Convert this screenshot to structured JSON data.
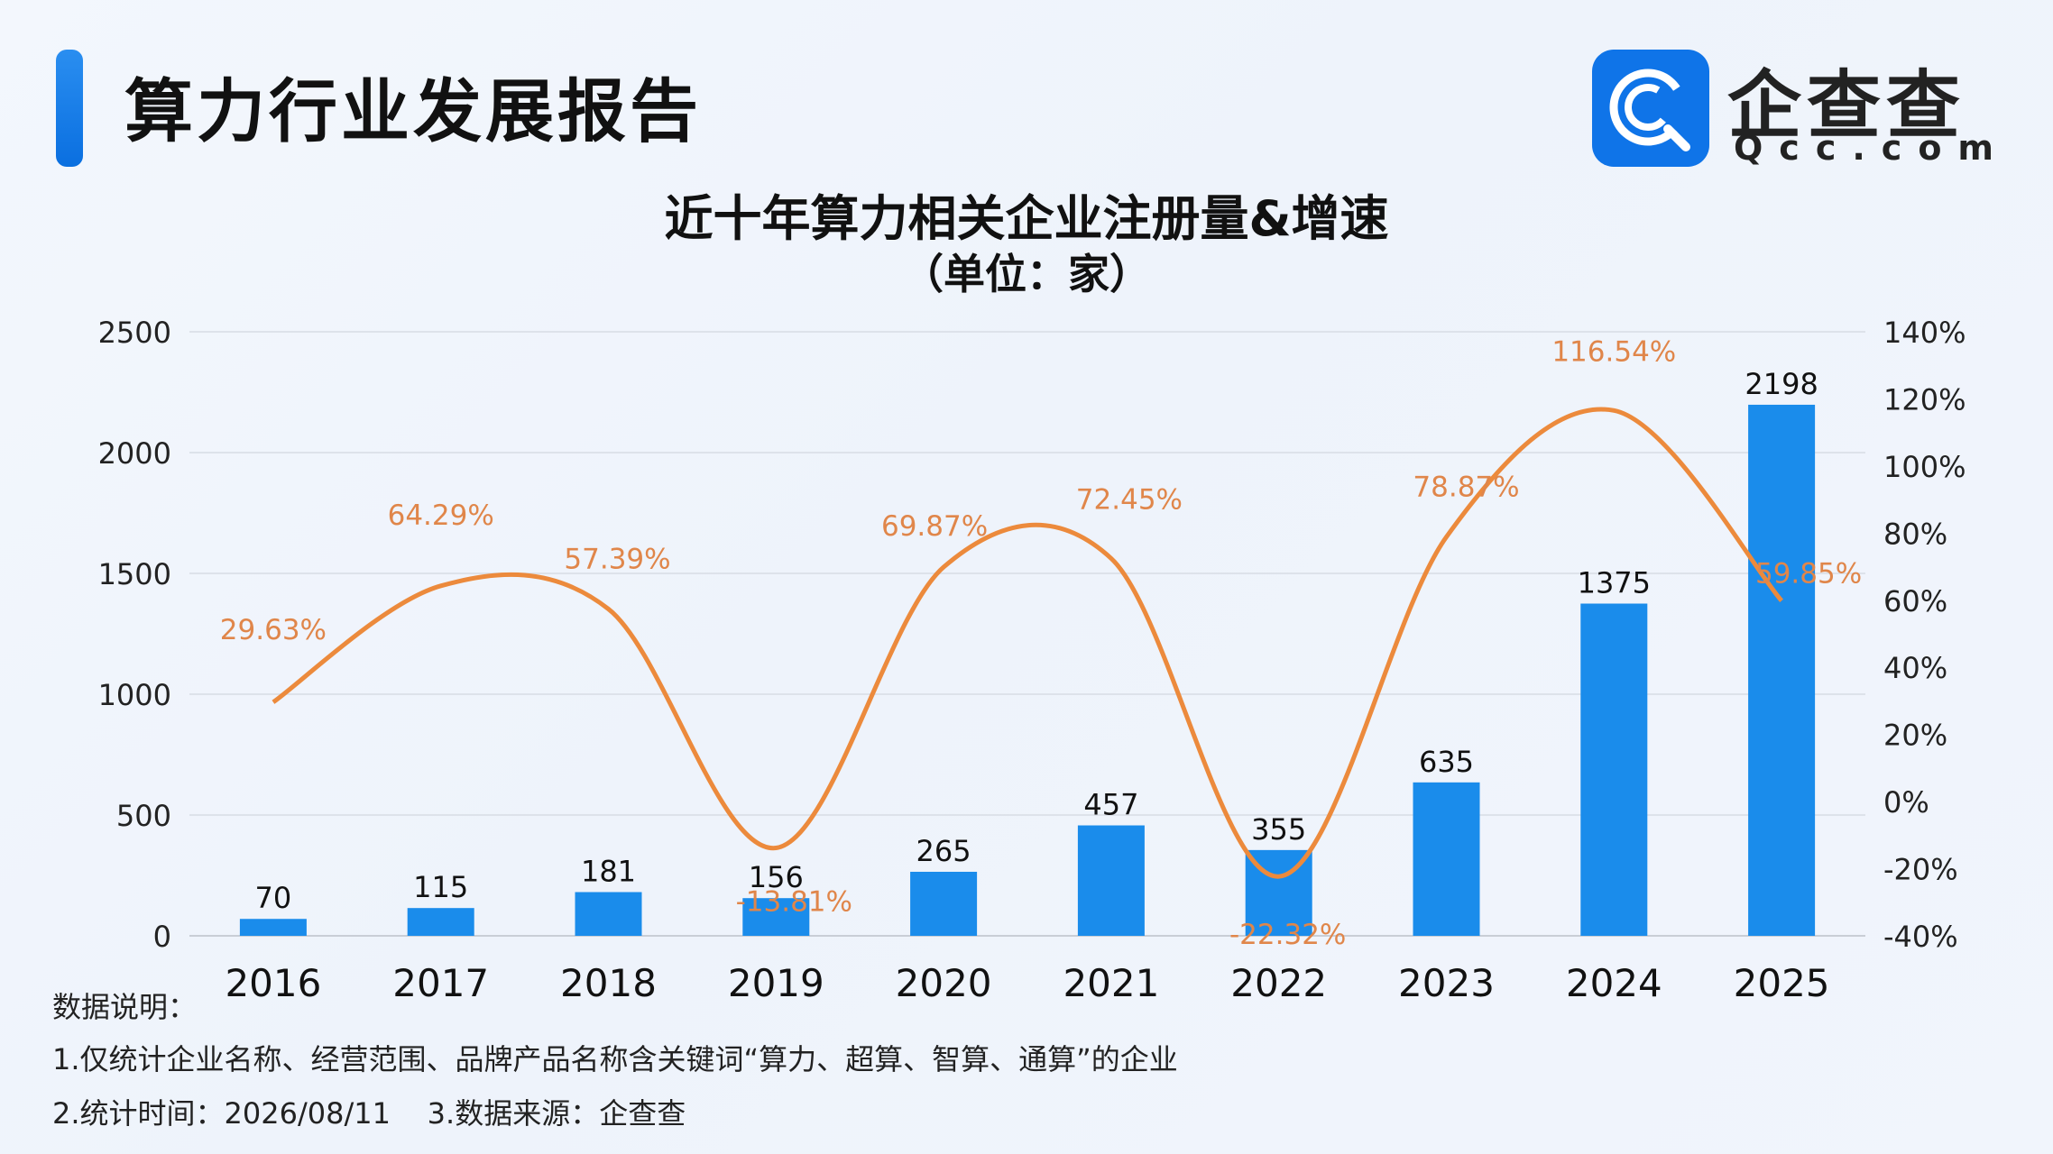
{
  "header": {
    "report_title": "算力行业发展报告",
    "brand_name": "企查查",
    "brand_domain": "Qcc.com",
    "accent_color": "#1a82ee"
  },
  "chart_data": {
    "type": "bar",
    "title": "近十年算力相关企业注册量&增速",
    "subtitle": "（单位：家）",
    "categories": [
      "2016",
      "2017",
      "2018",
      "2019",
      "2020",
      "2021",
      "2022",
      "2023",
      "2024",
      "2025"
    ],
    "series": [
      {
        "type": "bar",
        "axis": "left",
        "color": "#1a8ceb",
        "values": [
          70,
          115,
          181,
          156,
          265,
          457,
          355,
          635,
          1375,
          2198
        ],
        "labels": [
          "70",
          "115",
          "181",
          "156",
          "265",
          "457",
          "355",
          "635",
          "1375",
          "2198"
        ]
      },
      {
        "type": "line",
        "axis": "right",
        "color": "#ec8a3c",
        "smooth": true,
        "values": [
          29.63,
          64.29,
          57.39,
          -13.81,
          69.87,
          72.45,
          -22.32,
          78.87,
          116.54,
          59.85
        ],
        "labels": [
          "29.63%",
          "64.29%",
          "57.39%",
          "-13.81%",
          "69.87%",
          "72.45%",
          "-22.32%",
          "78.87%",
          "116.54%",
          "59.85%"
        ]
      }
    ],
    "y_left": {
      "min": 0,
      "max": 2500,
      "ticks": [
        "0",
        "500",
        "1000",
        "1500",
        "2000",
        "2500"
      ]
    },
    "y_right": {
      "min": -40,
      "max": 140,
      "ticks": [
        "-40%",
        "-20%",
        "0%",
        "20%",
        "40%",
        "60%",
        "80%",
        "100%",
        "120%",
        "140%"
      ]
    },
    "grid": true,
    "legend": "none"
  },
  "notes": {
    "heading": "数据说明：",
    "line1": "1.仅统计企业名称、经营范围、品牌产品名称含关键词“算力、超算、智算、通算”的企业",
    "line2": "2.统计时间：2026/08/11    3.数据来源：企查查"
  }
}
